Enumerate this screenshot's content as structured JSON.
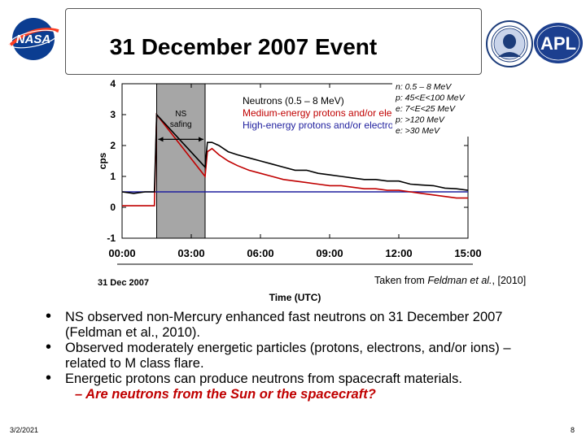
{
  "slide": {
    "title": "31 December 2007 Event",
    "date": "3/2/2021",
    "page": "8"
  },
  "logos": {
    "left": {
      "text": "NASA",
      "icon": "nasa-logo"
    },
    "spacecraft": {
      "icon": "messenger-spacecraft-icon"
    },
    "seal": {
      "icon": "carnegie-seal-logo"
    },
    "apl": {
      "text": "APL",
      "icon": "apl-logo"
    }
  },
  "source_note": {
    "prefix": "Taken from ",
    "authors": "Feldman et al.",
    "suffix": ", [2010]"
  },
  "bullets": [
    {
      "text": "NS observed non-Mercury enhanced fast neutrons on 31 December 2007 (Feldman et al., 2010)."
    },
    {
      "text": "Observed moderately energetic particles (protons, electrons, and/or ions) – related to M class flare."
    },
    {
      "text": "Energetic protons can produce neutrons from spacecraft materials.",
      "sub": "– Are neutrons from the Sun or the spacecraft?"
    }
  ],
  "chart_data": {
    "type": "line",
    "xlabel": "Time (UTC)",
    "ylabel": "cps",
    "date_label": "31 Dec 2007",
    "xlim": [
      0,
      15
    ],
    "ylim": [
      -1,
      4
    ],
    "x_tick_labels": [
      "00:00",
      "03:00",
      "06:00",
      "09:00",
      "12:00",
      "15:00"
    ],
    "x_tick_values": [
      0,
      3,
      6,
      9,
      12,
      15
    ],
    "y_tick_values": [
      -1,
      0,
      1,
      2,
      3,
      4
    ],
    "y_tick_labels": [
      "-1",
      "0",
      "1",
      "2",
      "3",
      "4"
    ],
    "shaded_region": {
      "x": [
        1.5,
        3.6
      ],
      "label_line1": "NS",
      "label_line2": "safing"
    },
    "legend_inside": [
      {
        "text": "Neutrons (0.5 – 8 MeV)",
        "color": "#000000"
      },
      {
        "text": "Medium-energy protons and/or electrons",
        "color": "#c00000"
      },
      {
        "text": "High-energy protons and/or electrons",
        "color": "#1f1f9e"
      }
    ],
    "legend_side": [
      {
        "text": "n: 0.5 – 8 MeV"
      },
      {
        "text": "p: 45<E<100 MeV"
      },
      {
        "text": "e: 7<E<25 MeV"
      },
      {
        "text": "p: >120 MeV"
      },
      {
        "text": "e: >30 MeV"
      }
    ],
    "series": [
      {
        "color": "#000000",
        "x": [
          0,
          0.5,
          1.0,
          1.4,
          1.5,
          3.6,
          3.7,
          3.9,
          4.2,
          4.6,
          5.0,
          5.5,
          6.0,
          6.5,
          7.0,
          7.5,
          8.0,
          8.5,
          9.0,
          9.5,
          10.0,
          10.5,
          11.0,
          11.5,
          12.0,
          12.5,
          13.0,
          13.5,
          14.0,
          14.5,
          15.0
        ],
        "y": [
          0.5,
          0.45,
          0.5,
          0.5,
          3.0,
          1.3,
          2.1,
          2.1,
          2.0,
          1.8,
          1.7,
          1.6,
          1.5,
          1.4,
          1.3,
          1.2,
          1.2,
          1.1,
          1.05,
          1.0,
          0.95,
          0.9,
          0.9,
          0.85,
          0.85,
          0.75,
          0.72,
          0.7,
          0.62,
          0.6,
          0.55
        ]
      },
      {
        "color": "#c00000",
        "x": [
          0,
          0.5,
          1.0,
          1.4,
          1.5,
          3.6,
          3.7,
          3.9,
          4.2,
          4.6,
          5.0,
          5.5,
          6.0,
          6.5,
          7.0,
          7.5,
          8.0,
          8.5,
          9.0,
          9.5,
          10.0,
          10.5,
          11.0,
          11.5,
          12.0,
          12.5,
          13.0,
          13.5,
          14.0,
          14.5,
          15.0
        ],
        "y": [
          0.05,
          0.05,
          0.05,
          0.05,
          3.0,
          1.0,
          1.8,
          1.9,
          1.7,
          1.5,
          1.35,
          1.2,
          1.1,
          1.0,
          0.9,
          0.85,
          0.8,
          0.75,
          0.7,
          0.7,
          0.65,
          0.6,
          0.6,
          0.55,
          0.55,
          0.5,
          0.45,
          0.4,
          0.35,
          0.3,
          0.3
        ]
      },
      {
        "color": "#1f1f9e",
        "x": [
          0,
          1.4,
          1.5,
          3.6,
          4.0,
          5.0,
          6.0,
          7.0,
          8.0,
          9.0,
          10.0,
          11.0,
          12.0,
          13.0,
          14.0,
          15.0
        ],
        "y": [
          0.5,
          0.5,
          0.5,
          0.5,
          0.5,
          0.5,
          0.5,
          0.5,
          0.5,
          0.5,
          0.5,
          0.5,
          0.5,
          0.5,
          0.5,
          0.5
        ]
      }
    ]
  }
}
